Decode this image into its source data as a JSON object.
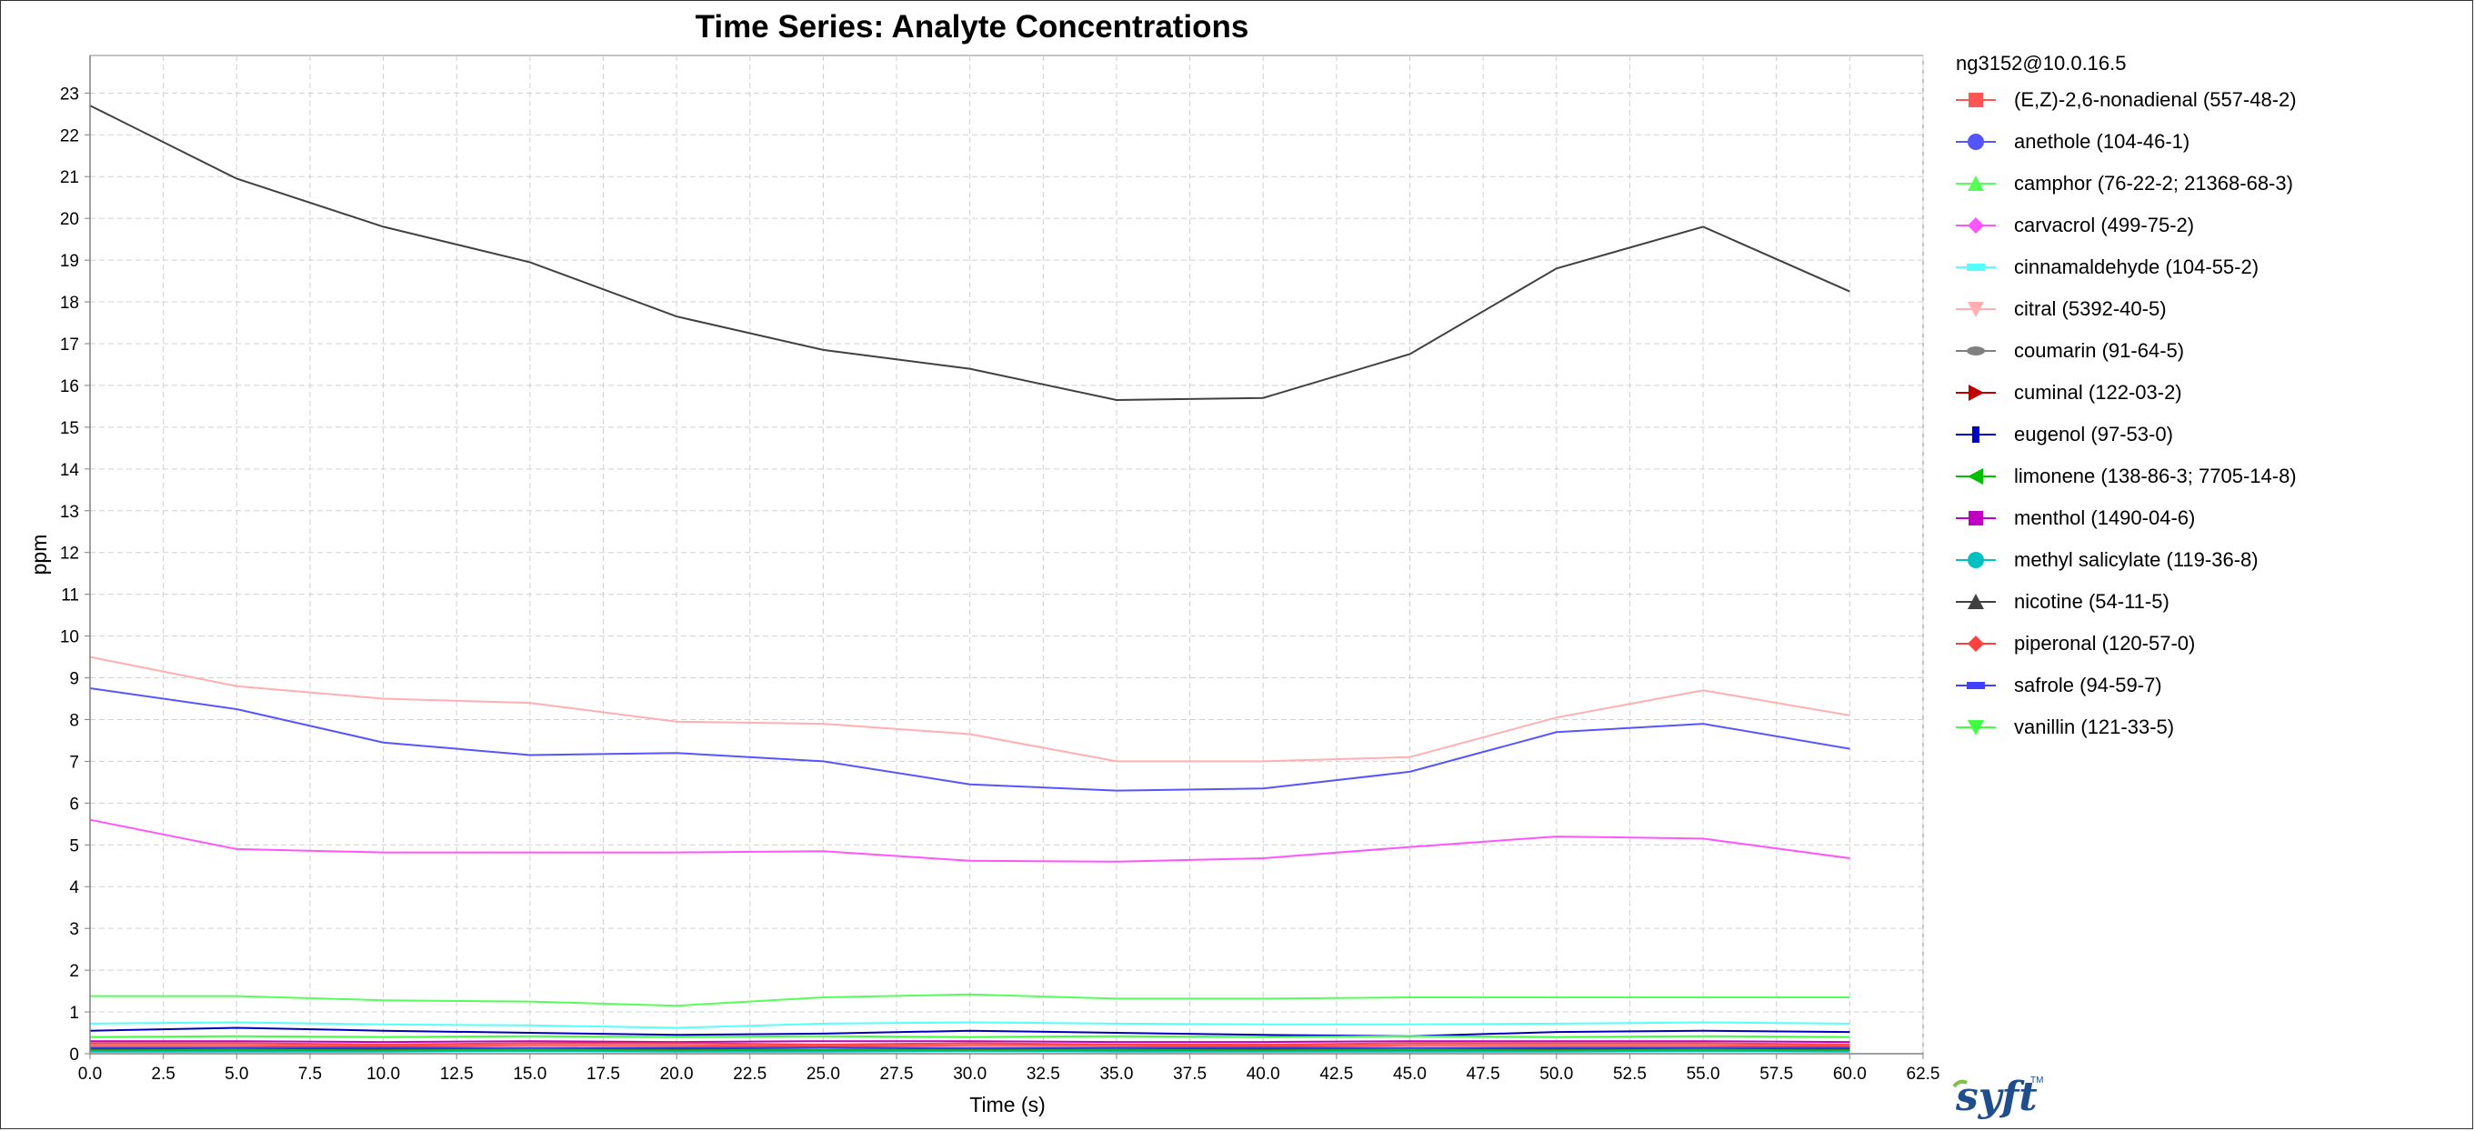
{
  "chart_data": {
    "type": "line",
    "title": "Time Series: Analyte Concentrations",
    "xlabel": "Time (s)",
    "ylabel": "ppm",
    "xlim": [
      0,
      62.5
    ],
    "ylim": [
      0,
      23.9
    ],
    "x_ticks": [
      "0.0",
      "2.5",
      "5.0",
      "7.5",
      "10.0",
      "12.5",
      "15.0",
      "17.5",
      "20.0",
      "22.5",
      "25.0",
      "27.5",
      "30.0",
      "32.5",
      "35.0",
      "37.5",
      "40.0",
      "42.5",
      "45.0",
      "47.5",
      "50.0",
      "52.5",
      "55.0",
      "57.5",
      "60.0",
      "62.5"
    ],
    "y_ticks": [
      "0",
      "1",
      "2",
      "3",
      "4",
      "5",
      "6",
      "7",
      "8",
      "9",
      "10",
      "11",
      "12",
      "13",
      "14",
      "15",
      "16",
      "17",
      "18",
      "19",
      "20",
      "21",
      "22",
      "23"
    ],
    "grid": true,
    "legend_title": "ng3152@10.0.16.5",
    "legend_position": "right",
    "x": [
      0,
      5,
      10,
      15,
      20,
      25,
      30,
      35,
      40,
      45,
      50,
      55,
      60
    ],
    "series": [
      {
        "name": "(E,Z)-2,6-nonadienal (557-48-2)",
        "color": "#ff5555",
        "marker": "square",
        "values": [
          0.2,
          0.2,
          0.18,
          0.2,
          0.2,
          0.18,
          0.2,
          0.2,
          0.18,
          0.2,
          0.2,
          0.2,
          0.18
        ]
      },
      {
        "name": "anethole (104-46-1)",
        "color": "#5555ff",
        "marker": "circle",
        "values": [
          8.75,
          8.25,
          7.45,
          7.15,
          7.2,
          7.0,
          6.45,
          6.3,
          6.35,
          6.75,
          7.7,
          7.9,
          7.3
        ]
      },
      {
        "name": "camphor (76-22-2; 21368-68-3)",
        "color": "#55ff55",
        "marker": "triangle-up",
        "values": [
          1.38,
          1.38,
          1.28,
          1.25,
          1.15,
          1.35,
          1.42,
          1.32,
          1.32,
          1.35,
          1.35,
          1.35,
          1.35
        ]
      },
      {
        "name": "carvacrol (499-75-2)",
        "color": "#ff55ff",
        "marker": "diamond",
        "values": [
          5.6,
          4.9,
          4.82,
          4.82,
          4.82,
          4.85,
          4.62,
          4.6,
          4.68,
          4.95,
          5.2,
          5.15,
          4.68
        ]
      },
      {
        "name": "cinnamaldehyde (104-55-2)",
        "color": "#55ffff",
        "marker": "rect",
        "values": [
          0.72,
          0.75,
          0.7,
          0.68,
          0.62,
          0.72,
          0.75,
          0.72,
          0.7,
          0.7,
          0.72,
          0.75,
          0.72
        ]
      },
      {
        "name": "citral (5392-40-5)",
        "color": "#ffafaf",
        "marker": "triangle-down",
        "values": [
          9.5,
          8.8,
          8.5,
          8.4,
          7.95,
          7.9,
          7.65,
          7.0,
          7.0,
          7.1,
          8.05,
          8.7,
          8.1
        ]
      },
      {
        "name": "coumarin (91-64-5)",
        "color": "#808080",
        "marker": "ellipse",
        "values": [
          0.1,
          0.1,
          0.1,
          0.1,
          0.1,
          0.1,
          0.1,
          0.1,
          0.1,
          0.1,
          0.1,
          0.1,
          0.1
        ]
      },
      {
        "name": "cuminal (122-03-2)",
        "color": "#c00000",
        "marker": "triangle-right",
        "values": [
          0.12,
          0.14,
          0.12,
          0.14,
          0.12,
          0.15,
          0.12,
          0.14,
          0.12,
          0.14,
          0.12,
          0.14,
          0.12
        ]
      },
      {
        "name": "eugenol (97-53-0)",
        "color": "#0000c0",
        "marker": "rect-vertical",
        "values": [
          0.55,
          0.62,
          0.55,
          0.5,
          0.45,
          0.48,
          0.55,
          0.5,
          0.45,
          0.42,
          0.52,
          0.55,
          0.52
        ]
      },
      {
        "name": "limonene (138-86-3; 7705-14-8)",
        "color": "#00c000",
        "marker": "triangle-left",
        "values": [
          0.08,
          0.08,
          0.08,
          0.08,
          0.08,
          0.08,
          0.08,
          0.08,
          0.08,
          0.08,
          0.08,
          0.08,
          0.08
        ]
      },
      {
        "name": "menthol (1490-04-6)",
        "color": "#c000c0",
        "marker": "square",
        "values": [
          0.3,
          0.3,
          0.28,
          0.3,
          0.28,
          0.3,
          0.3,
          0.28,
          0.28,
          0.3,
          0.3,
          0.3,
          0.28
        ]
      },
      {
        "name": "methyl salicylate (119-36-8)",
        "color": "#00c0c0",
        "marker": "circle",
        "values": [
          0.05,
          0.05,
          0.05,
          0.06,
          0.05,
          0.05,
          0.06,
          0.05,
          0.05,
          0.05,
          0.05,
          0.06,
          0.05
        ]
      },
      {
        "name": "nicotine (54-11-5)",
        "color": "#404040",
        "marker": "triangle-up",
        "values": [
          22.7,
          20.95,
          19.8,
          18.95,
          17.65,
          16.85,
          16.4,
          15.65,
          15.7,
          16.75,
          18.8,
          19.8,
          18.25
        ]
      },
      {
        "name": "piperonal (120-57-0)",
        "color": "#ff4040",
        "marker": "diamond",
        "values": [
          0.25,
          0.25,
          0.22,
          0.25,
          0.25,
          0.22,
          0.25,
          0.22,
          0.22,
          0.25,
          0.25,
          0.25,
          0.22
        ]
      },
      {
        "name": "safrole (94-59-7)",
        "color": "#4040ff",
        "marker": "rect",
        "values": [
          0.15,
          0.15,
          0.15,
          0.14,
          0.15,
          0.15,
          0.14,
          0.15,
          0.15,
          0.14,
          0.15,
          0.15,
          0.15
        ]
      },
      {
        "name": "vanillin (121-33-5)",
        "color": "#40ff40",
        "marker": "triangle-down",
        "values": [
          0.4,
          0.42,
          0.4,
          0.42,
          0.4,
          0.42,
          0.4,
          0.42,
          0.4,
          0.42,
          0.4,
          0.42,
          0.4
        ]
      }
    ]
  },
  "logo": {
    "text": "syft",
    "tm": "TM"
  }
}
